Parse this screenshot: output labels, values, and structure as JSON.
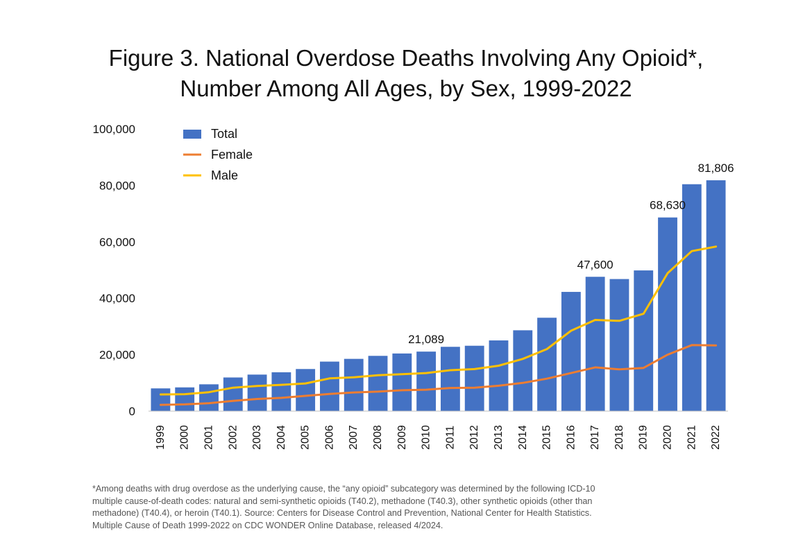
{
  "title_lines": [
    "Figure 3. National Overdose Deaths Involving Any Opioid*,",
    "Number Among All Ages, by Sex, 1999-2022"
  ],
  "footnote_lines": [
    "*Among deaths with drug overdose as the underlying cause, the “any opioid” subcategory was determined by the following ICD-10",
    "multiple cause-of-death codes: natural and semi-synthetic opioids (T40.2), methadone (T40.3), other synthetic opioids (other than",
    "methadone) (T40.4), or heroin (T40.1). Source: Centers for Disease Control and Prevention, National Center for Health Statistics.",
    "Multiple Cause of Death 1999-2022 on CDC WONDER Online Database, released 4/2024."
  ],
  "colors": {
    "total": "#4472C4",
    "female": "#ED7D31",
    "male": "#FFC000",
    "axis": "#bfbfbf"
  },
  "chart_data": {
    "type": "bar",
    "title": "Figure 3. National Overdose Deaths Involving Any Opioid*, Number Among All Ages, by Sex, 1999-2022",
    "xlabel": "",
    "ylabel": "",
    "ylim": [
      0,
      100000
    ],
    "y_ticks": [
      0,
      20000,
      40000,
      60000,
      80000,
      100000
    ],
    "y_tick_labels": [
      "0",
      "20,000",
      "40,000",
      "60,000",
      "80,000",
      "100,000"
    ],
    "grid": false,
    "legend_position": "top-left",
    "categories": [
      "1999",
      "2000",
      "2001",
      "2002",
      "2003",
      "2004",
      "2005",
      "2006",
      "2007",
      "2008",
      "2009",
      "2010",
      "2011",
      "2012",
      "2013",
      "2014",
      "2015",
      "2016",
      "2017",
      "2018",
      "2019",
      "2020",
      "2021",
      "2022"
    ],
    "series": [
      {
        "name": "Total",
        "kind": "bar",
        "color": "#4472C4",
        "values": [
          8050,
          8407,
          9496,
          11920,
          12940,
          13756,
          14918,
          17545,
          18516,
          19582,
          20422,
          21089,
          22784,
          23166,
          25052,
          28647,
          33091,
          42249,
          47600,
          46802,
          49860,
          68630,
          80411,
          81806
        ]
      },
      {
        "name": "Female",
        "kind": "line",
        "color": "#ED7D31",
        "values": [
          2200,
          2400,
          2800,
          3600,
          4300,
          4700,
          5400,
          6100,
          6600,
          6900,
          7400,
          7600,
          8200,
          8300,
          9000,
          10000,
          11500,
          13500,
          15500,
          14800,
          15300,
          20000,
          23400,
          23300
        ]
      },
      {
        "name": "Male",
        "kind": "line",
        "color": "#FFC000",
        "values": [
          5900,
          6000,
          6700,
          8300,
          8900,
          9300,
          9800,
          11600,
          12000,
          12700,
          13100,
          13500,
          14500,
          14900,
          16100,
          18500,
          22000,
          28500,
          32300,
          32000,
          34500,
          48900,
          56700,
          58300
        ]
      }
    ],
    "data_labels": [
      {
        "category": "2010",
        "text": "21,089"
      },
      {
        "category": "2017",
        "text": "47,600"
      },
      {
        "category": "2020",
        "text": "68,630"
      },
      {
        "category": "2022",
        "text": "81,806"
      }
    ]
  }
}
